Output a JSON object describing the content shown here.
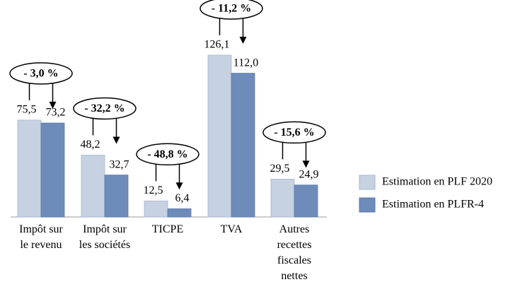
{
  "chart_data": {
    "type": "bar",
    "categories": [
      "Impôt sur le revenu",
      "Impôt sur les sociétés",
      "TICPE",
      "TVA",
      "Autres recettes fiscales nettes"
    ],
    "series": [
      {
        "name": "Estimation en PLF 2020",
        "color": "#c6d1e2",
        "values": [
          75.5,
          48.2,
          12.5,
          126.1,
          29.5
        ],
        "value_labels": [
          "75,5",
          "48,2",
          "12,5",
          "126,1",
          "29,5"
        ]
      },
      {
        "name": "Estimation en PLFR-4",
        "color": "#6e8cba",
        "values": [
          73.2,
          32.7,
          6.4,
          112.0,
          24.9
        ],
        "value_labels": [
          "73,2",
          "32,7",
          "6,4",
          "112,0",
          "24,9"
        ]
      }
    ],
    "annotations": [
      "- 3,0 %",
      "- 32,2 %",
      "- 48,8 %",
      "- 11,2 %",
      "- 15,6 %"
    ],
    "legend": "right"
  }
}
